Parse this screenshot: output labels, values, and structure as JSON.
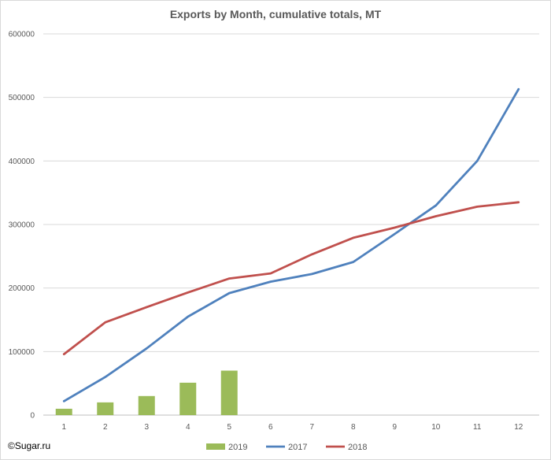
{
  "chart_data": {
    "type": "bar+line",
    "title": "Exports by Month, cumulative totals, MT",
    "xlabel": "",
    "ylabel": "",
    "categories": [
      "1",
      "2",
      "3",
      "4",
      "5",
      "6",
      "7",
      "8",
      "9",
      "10",
      "11",
      "12"
    ],
    "ylim": [
      0,
      600000
    ],
    "yticks": [
      "0",
      "100000",
      "200000",
      "300000",
      "400000",
      "500000",
      "600000"
    ],
    "grid": true,
    "legend": "bottom",
    "series": [
      {
        "name": "2019",
        "kind": "bar",
        "color": "#9bbb59",
        "values": [
          10000,
          20000,
          30000,
          51000,
          70000,
          null,
          null,
          null,
          null,
          null,
          null,
          null
        ]
      },
      {
        "name": "2017",
        "kind": "line",
        "color": "#4f81bd",
        "values": [
          22000,
          60000,
          105000,
          155000,
          192000,
          210000,
          222000,
          241000,
          285000,
          330000,
          400000,
          513000
        ]
      },
      {
        "name": "2018",
        "kind": "line",
        "color": "#c0504d",
        "values": [
          96000,
          146000,
          170000,
          193000,
          215000,
          223000,
          253000,
          279000,
          295000,
          313000,
          328000,
          335000
        ]
      }
    ]
  },
  "credit": "©Sugar.ru"
}
